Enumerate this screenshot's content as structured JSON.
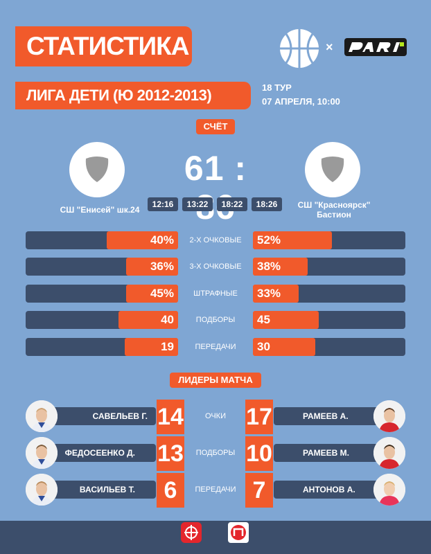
{
  "header": {
    "title": "СТАТИСТИКА",
    "league": "ЛИГА ДЕТИ (Ю 2012-2013)",
    "round": "18 ТУР",
    "date": "07 АПРЕЛЯ, 10:00",
    "partner_sep": "×"
  },
  "score_section": {
    "label": "СЧЁТ",
    "score": "61 : 86",
    "home_team": "СШ \"Енисей\" шк.24",
    "away_team_line1": "СШ \"Красноярск\"",
    "away_team_line2": "Бастион",
    "quarters": [
      "12:16",
      "13:22",
      "18:22",
      "18:26"
    ]
  },
  "stats": [
    {
      "label": "2-Х ОЧКОВЫЕ",
      "home": "40%",
      "away": "52%",
      "home_fill": 0.47,
      "away_fill": 0.52
    },
    {
      "label": "3-Х ОЧКОВЫЕ",
      "home": "36%",
      "away": "38%",
      "home_fill": 0.34,
      "away_fill": 0.36
    },
    {
      "label": "ШТРАФНЫЕ",
      "home": "45%",
      "away": "33%",
      "home_fill": 0.34,
      "away_fill": 0.3
    },
    {
      "label": "ПОДБОРЫ",
      "home": "40",
      "away": "45",
      "home_fill": 0.39,
      "away_fill": 0.43
    },
    {
      "label": "ПЕРЕДАЧИ",
      "home": "19",
      "away": "30",
      "home_fill": 0.35,
      "away_fill": 0.41
    }
  ],
  "leaders": {
    "label": "ЛИДЕРЫ МАТЧА",
    "rows": [
      {
        "category": "ОЧКИ",
        "home_name": "САВЕЛЬЕВ Г.",
        "home_value": "14",
        "away_name": "РАМЕЕВ А.",
        "away_value": "17"
      },
      {
        "category": "ПОДБОРЫ",
        "home_name": "ФЕДОСЕЕНКО Д.",
        "home_value": "13",
        "away_name": "РАМЕЕВ М.",
        "away_value": "10"
      },
      {
        "category": "ПЕРЕДАЧИ",
        "home_name": "ВАСИЛЬЕВ Т.",
        "home_value": "6",
        "away_name": "АНТОНОВ А.",
        "away_value": "7"
      }
    ]
  },
  "colors": {
    "background": "#7fa6d3",
    "accent": "#f15a2b",
    "navy": "#3c4e6b"
  },
  "icons": {
    "league_logo": "basketball-logo-icon",
    "sponsor": "pari-logo-icon",
    "team_emblem": "shield-icon"
  }
}
